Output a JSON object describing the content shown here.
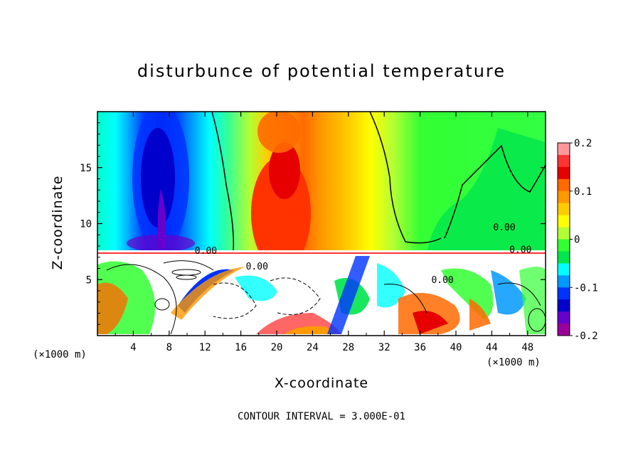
{
  "chart_data": {
    "type": "heatmap",
    "title": "disturbunce of potential temperature",
    "xlabel": "X-coordinate",
    "ylabel": "Z-coordinate",
    "x_unit": "(×1000 m)",
    "y_unit": "(×1000 m)",
    "xlim": [
      0,
      50
    ],
    "ylim": [
      0,
      20
    ],
    "x_ticks": [
      "4",
      "8",
      "12",
      "16",
      "20",
      "24",
      "28",
      "32",
      "36",
      "40",
      "44",
      "48"
    ],
    "y_ticks": [
      "5",
      "10",
      "15"
    ],
    "colorbar": {
      "range": [
        -0.2,
        0.2
      ],
      "tick_labels": [
        "0.2",
        "0.1",
        "0",
        "-0.1",
        "-0.2"
      ],
      "colors": [
        "#ff9999",
        "#ff3333",
        "#e60000",
        "#ff6a00",
        "#ff9900",
        "#ffcc00",
        "#ffff00",
        "#b3ff33",
        "#33ff33",
        "#00e64d",
        "#00ffff",
        "#0099ff",
        "#0033ff",
        "#0000cc",
        "#6600cc",
        "#990099"
      ]
    },
    "contour_labels": [
      "0.00",
      "0.00",
      "0.00",
      "0.00",
      "0.00"
    ],
    "contour_interval_label": "CONTOUR INTERVAL =  3.000E-01"
  }
}
